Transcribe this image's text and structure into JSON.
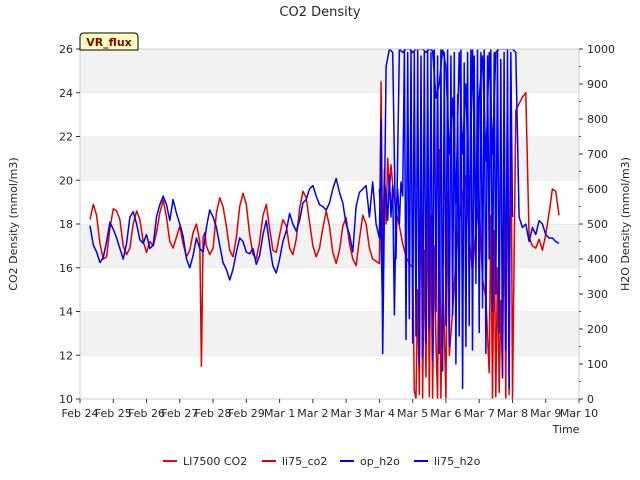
{
  "chart_data": {
    "type": "line",
    "title": "CO2 Density",
    "xlabel": "Time",
    "ylabel_left": "CO2 Density (mmol/m3)",
    "ylabel_right": "H2O Density (mmol/m3)",
    "badge": "VR_flux",
    "x_ticks": [
      "Feb 24",
      "Feb 25",
      "Feb 26",
      "Feb 27",
      "Feb 28",
      "Feb 29",
      "Mar 1",
      "Mar 2",
      "Mar 3",
      "Mar 4",
      "Mar 5",
      "Mar 6",
      "Mar 7",
      "Mar 8",
      "Mar 9",
      "Mar 10"
    ],
    "xlim": [
      0,
      15
    ],
    "ylim_left": [
      10,
      26
    ],
    "yticks_left": [
      10,
      12,
      14,
      16,
      18,
      20,
      22,
      24,
      26
    ],
    "ylim_right": [
      0,
      1000
    ],
    "yticks_right": [
      0,
      100,
      200,
      300,
      400,
      500,
      600,
      700,
      800,
      900,
      1000
    ],
    "grid": "horizontal bands",
    "legend_position": "bottom",
    "series": [
      {
        "name": "LI7500 CO2",
        "color": "#ff0000",
        "axis": "left",
        "x": [],
        "y": []
      },
      {
        "name": "li75_co2",
        "color": "#e00000",
        "axis": "left",
        "x": [
          0.3,
          0.4,
          0.5,
          0.6,
          0.7,
          0.8,
          0.9,
          1.0,
          1.1,
          1.2,
          1.3,
          1.4,
          1.5,
          1.6,
          1.7,
          1.8,
          1.9,
          2.0,
          2.1,
          2.2,
          2.3,
          2.4,
          2.5,
          2.6,
          2.7,
          2.8,
          2.9,
          3.0,
          3.1,
          3.2,
          3.3,
          3.4,
          3.5,
          3.6,
          3.65,
          3.7,
          3.75,
          3.8,
          3.9,
          4.0,
          4.1,
          4.2,
          4.3,
          4.4,
          4.5,
          4.6,
          4.7,
          4.8,
          4.9,
          5.0,
          5.1,
          5.2,
          5.3,
          5.4,
          5.5,
          5.6,
          5.7,
          5.8,
          5.9,
          6.0,
          6.1,
          6.2,
          6.3,
          6.4,
          6.5,
          6.6,
          6.7,
          6.8,
          6.9,
          7.0,
          7.1,
          7.2,
          7.3,
          7.4,
          7.5,
          7.6,
          7.7,
          7.8,
          7.9,
          8.0,
          8.1,
          8.2,
          8.3,
          8.4,
          8.5,
          8.6,
          8.7,
          8.8,
          8.9,
          9.0,
          9.05,
          9.1,
          9.15,
          9.2,
          9.25,
          9.3,
          9.35,
          9.4,
          9.5,
          9.6,
          9.7,
          9.8,
          9.9,
          10.0,
          10.05,
          10.1,
          10.15,
          10.2,
          10.25,
          10.3,
          10.35,
          10.4,
          10.45,
          10.5,
          10.55,
          10.6,
          10.65,
          10.7,
          10.75,
          10.8,
          10.85,
          10.9,
          10.95,
          11.0,
          11.05,
          11.1,
          11.2,
          11.3,
          11.4,
          11.5,
          11.6,
          11.7,
          11.8,
          11.9,
          12.0,
          12.1,
          12.2,
          12.3,
          12.35,
          12.4,
          12.45,
          12.5,
          12.55,
          12.6,
          12.65,
          12.7,
          12.75,
          12.8,
          12.85,
          12.9,
          12.95,
          13.0,
          13.1,
          13.2,
          13.3,
          13.4,
          13.5,
          13.6,
          13.7,
          13.8,
          13.9,
          14.0,
          14.1,
          14.2,
          14.3,
          14.4
        ],
        "y": [
          18.2,
          18.9,
          18.4,
          17.1,
          16.4,
          16.5,
          17.8,
          18.7,
          18.6,
          18.2,
          17.0,
          16.6,
          16.9,
          18.0,
          18.6,
          18.2,
          17.2,
          16.7,
          17.2,
          17.0,
          17.6,
          18.5,
          19.1,
          18.3,
          17.2,
          16.9,
          17.4,
          17.9,
          17.1,
          16.5,
          16.8,
          17.6,
          18.0,
          17.2,
          11.5,
          17.4,
          17.6,
          17.0,
          16.6,
          16.9,
          18.5,
          19.2,
          18.8,
          17.9,
          16.8,
          16.5,
          17.4,
          18.8,
          19.4,
          18.9,
          17.5,
          16.6,
          16.4,
          17.2,
          18.4,
          18.9,
          17.8,
          16.8,
          16.7,
          17.5,
          18.2,
          17.9,
          16.9,
          16.6,
          17.3,
          18.7,
          19.5,
          19.2,
          18.1,
          17.0,
          16.5,
          16.9,
          17.8,
          18.6,
          17.9,
          16.7,
          16.2,
          16.8,
          17.9,
          18.3,
          17.1,
          16.4,
          16.1,
          17.3,
          18.4,
          18.0,
          16.9,
          16.4,
          16.3,
          16.2,
          24.5,
          16.5,
          20.5,
          18.0,
          21.0,
          19.5,
          20.7,
          19.8,
          18.6,
          17.9,
          17.1,
          16.5,
          16.2,
          16.0,
          10.4,
          10.0,
          15.0,
          10.2,
          22.0,
          10.0,
          16.8,
          11.0,
          20.2,
          10.1,
          18.4,
          10.0,
          17.0,
          12.5,
          10.0,
          21.4,
          10.0,
          16.0,
          13.2,
          10.0,
          19.5,
          12.0,
          14.0,
          16.4,
          18.0,
          19.3,
          20.2,
          17.4,
          15.8,
          17.8,
          19.0,
          15.5,
          14.6,
          11.2,
          18.4,
          10.0,
          17.7,
          10.1,
          16.0,
          10.3,
          14.5,
          11.0,
          19.4,
          10.0,
          24.5,
          10.2,
          25.0,
          10.0,
          23.2,
          23.5,
          23.8,
          24.0,
          17.4,
          17.0,
          16.9,
          17.3,
          16.8,
          17.5,
          18.5,
          19.6,
          19.5,
          18.4
        ]
      },
      {
        "name": "op_h2o",
        "color": "#0000ee",
        "axis": "right",
        "x": [
          0.3,
          0.4,
          0.5,
          0.6,
          0.7,
          0.8,
          0.9,
          1.0,
          1.1,
          1.2,
          1.3,
          1.4,
          1.5,
          1.6,
          1.7,
          1.8,
          1.9,
          2.0,
          2.1,
          2.2,
          2.3,
          2.4,
          2.5,
          2.6,
          2.7,
          2.8,
          2.9,
          3.0,
          3.1,
          3.2,
          3.3,
          3.4,
          3.5,
          3.6,
          3.7,
          3.8,
          3.9,
          4.0,
          4.1,
          4.2,
          4.3,
          4.4,
          4.5,
          4.6,
          4.7,
          4.8,
          4.9,
          5.0,
          5.1,
          5.2,
          5.3,
          5.4,
          5.5,
          5.6,
          5.7,
          5.8,
          5.9,
          6.0,
          6.1,
          6.2,
          6.3,
          6.4,
          6.5,
          6.6,
          6.7,
          6.8,
          6.9,
          7.0,
          7.1,
          7.2,
          7.3,
          7.4,
          7.5,
          7.6,
          7.7,
          7.8,
          7.9,
          8.0,
          8.1,
          8.2,
          8.3,
          8.4,
          8.5,
          8.6,
          8.7,
          8.8,
          8.9,
          9.0,
          9.05,
          9.1,
          9.2,
          9.3,
          9.4,
          9.5,
          9.6,
          9.7,
          9.8,
          9.9,
          10.0,
          10.1,
          10.2,
          10.3,
          10.4,
          10.5,
          10.6,
          10.7,
          10.8,
          10.9,
          11.0,
          11.1,
          11.2,
          11.3,
          11.4,
          11.5,
          11.6,
          11.7,
          11.8,
          11.9,
          12.0,
          12.1,
          12.2,
          12.3,
          12.4,
          12.5,
          12.6,
          12.7,
          12.8,
          12.9,
          13.0,
          13.1,
          13.2,
          13.3,
          13.4,
          13.5,
          13.6,
          13.7,
          13.8,
          13.9,
          14.0,
          14.1,
          14.2,
          14.3,
          14.4
        ],
        "y": [
          495,
          440,
          420,
          390,
          405,
          450,
          505,
          485,
          460,
          430,
          400,
          445,
          520,
          535,
          500,
          455,
          445,
          470,
          430,
          440,
          520,
          555,
          580,
          555,
          510,
          570,
          530,
          500,
          465,
          400,
          375,
          410,
          460,
          430,
          420,
          490,
          540,
          520,
          490,
          440,
          390,
          370,
          340,
          370,
          420,
          460,
          450,
          420,
          415,
          430,
          385,
          410,
          470,
          510,
          440,
          380,
          360,
          400,
          450,
          480,
          530,
          500,
          480,
          510,
          560,
          570,
          600,
          610,
          580,
          555,
          550,
          540,
          560,
          600,
          630,
          590,
          560,
          500,
          470,
          420,
          550,
          590,
          600,
          610,
          520,
          620,
          500,
          460,
          800,
          130,
          950,
          1000,
          990,
          400,
          1000,
          990,
          1000,
          1000,
          990,
          1000,
          1000,
          1000,
          990,
          1000,
          995,
          860,
          900,
          1000,
          950,
          700,
          860,
          560,
          990,
          700,
          900,
          530,
          1000,
          440,
          860,
          980,
          680,
          990,
          700,
          990,
          1000,
          1000,
          1000,
          1000,
          1000,
          990,
          520,
          490,
          500,
          450,
          490,
          470,
          510,
          500,
          470,
          460,
          460,
          450,
          445
        ]
      },
      {
        "name": "li75_h2o",
        "color": "#0000ff",
        "axis": "right",
        "x": [
          9.0,
          9.05,
          9.1,
          9.15,
          9.2,
          9.25,
          9.3,
          9.35,
          9.4,
          9.45,
          9.5,
          9.55,
          9.6,
          9.65,
          9.7,
          9.75,
          9.8,
          9.85,
          9.9,
          9.95,
          10.0,
          10.05,
          10.1,
          10.15,
          10.2,
          10.25,
          10.3,
          10.35,
          10.4,
          10.45,
          10.5,
          10.55,
          10.6,
          10.65,
          10.7,
          10.75,
          10.8,
          10.85,
          10.9,
          10.95,
          11.0,
          11.05,
          11.1,
          11.15,
          11.2,
          11.25,
          11.3,
          11.35,
          11.4,
          11.45,
          11.5,
          11.55,
          11.6,
          11.65,
          11.7,
          11.75,
          11.8,
          11.85,
          11.9,
          11.95,
          12.0,
          12.05,
          12.1,
          12.15,
          12.2,
          12.25,
          12.3,
          12.35,
          12.4,
          12.45,
          12.5,
          12.55,
          12.6,
          12.65,
          12.7,
          12.75,
          12.8,
          12.85,
          12.9,
          12.95,
          13.0
        ],
        "y": [
          600,
          460,
          230,
          620,
          580,
          510,
          640,
          520,
          610,
          240,
          540,
          600,
          500,
          620,
          580,
          1000,
          170,
          990,
          230,
          1000,
          160,
          990,
          180,
          1000,
          100,
          980,
          120,
          990,
          160,
          1000,
          200,
          990,
          110,
          1000,
          250,
          980,
          130,
          1000,
          80,
          990,
          210,
          1000,
          150,
          980,
          240,
          990,
          100,
          870,
          180,
          1000,
          30,
          960,
          150,
          990,
          210,
          1000,
          140,
          980,
          330,
          1000,
          190,
          990,
          260,
          1000,
          130,
          980,
          400,
          1000,
          250,
          990,
          300,
          1000,
          190,
          970,
          60,
          990,
          140,
          1000,
          30,
          990,
          520
        ]
      }
    ]
  }
}
